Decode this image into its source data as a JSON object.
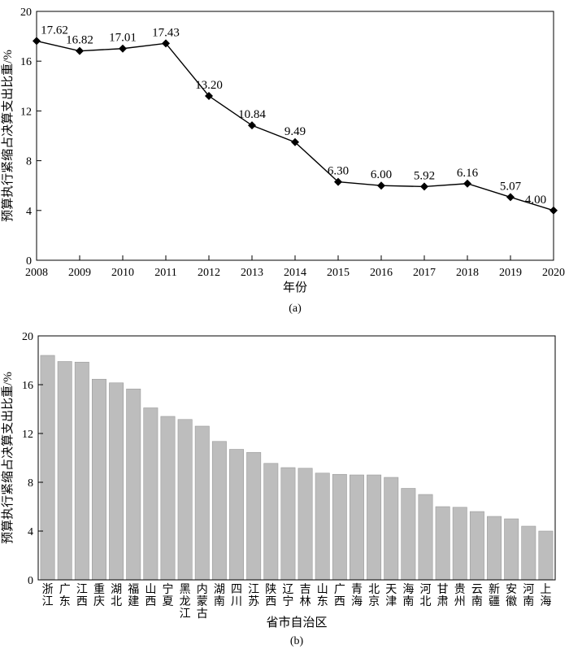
{
  "chart_data": [
    {
      "type": "line",
      "panel_label": "(a)",
      "xlabel": "年份",
      "ylabel": "预算执行紧缩占决算支出比重/%",
      "x": [
        "2008",
        "2009",
        "2010",
        "2011",
        "2012",
        "2013",
        "2014",
        "2015",
        "2016",
        "2017",
        "2018",
        "2019",
        "2020"
      ],
      "series": [
        {
          "values": [
            17.62,
            16.82,
            17.01,
            17.43,
            13.2,
            10.84,
            9.49,
            6.3,
            6.0,
            5.92,
            6.16,
            5.07,
            4.0
          ],
          "labels": [
            "17.62",
            "16.82",
            "17.01",
            "17.43",
            "13.20",
            "10.84",
            "9.49",
            "6.30",
            "6.00",
            "5.92",
            "6.16",
            "5.07",
            "4.00"
          ]
        }
      ],
      "ylim": [
        0,
        20
      ],
      "yticks": [
        "0",
        "4",
        "8",
        "12",
        "16",
        "20"
      ],
      "marker": "diamond",
      "grid": false
    },
    {
      "type": "bar",
      "panel_label": "(b)",
      "xlabel": "省市自治区",
      "ylabel": "预算执行紧缩占决算支出比重/%",
      "categories": [
        "浙江",
        "广东",
        "江西",
        "重庆",
        "湖北",
        "福建",
        "山西",
        "宁夏",
        "黑龙江",
        "内蒙古",
        "湖南",
        "四川",
        "江苏",
        "陕西",
        "辽宁",
        "吉林",
        "山东",
        "广西",
        "青海",
        "北京",
        "天津",
        "海南",
        "河北",
        "甘肃",
        "贵州",
        "云南",
        "新疆",
        "安徽",
        "河南",
        "上海"
      ],
      "values": [
        18.4,
        17.9,
        17.85,
        16.45,
        16.15,
        15.65,
        14.1,
        13.4,
        13.15,
        12.6,
        11.35,
        10.7,
        10.45,
        9.55,
        9.2,
        9.15,
        8.75,
        8.65,
        8.6,
        8.6,
        8.4,
        7.5,
        7.0,
        6.0,
        5.95,
        5.6,
        5.2,
        5.0,
        4.4,
        4.0
      ],
      "ylim": [
        0,
        20
      ],
      "yticks": [
        "0",
        "4",
        "8",
        "12",
        "16",
        "20"
      ],
      "bar_color": "#bdbdbd",
      "grid": false
    }
  ]
}
